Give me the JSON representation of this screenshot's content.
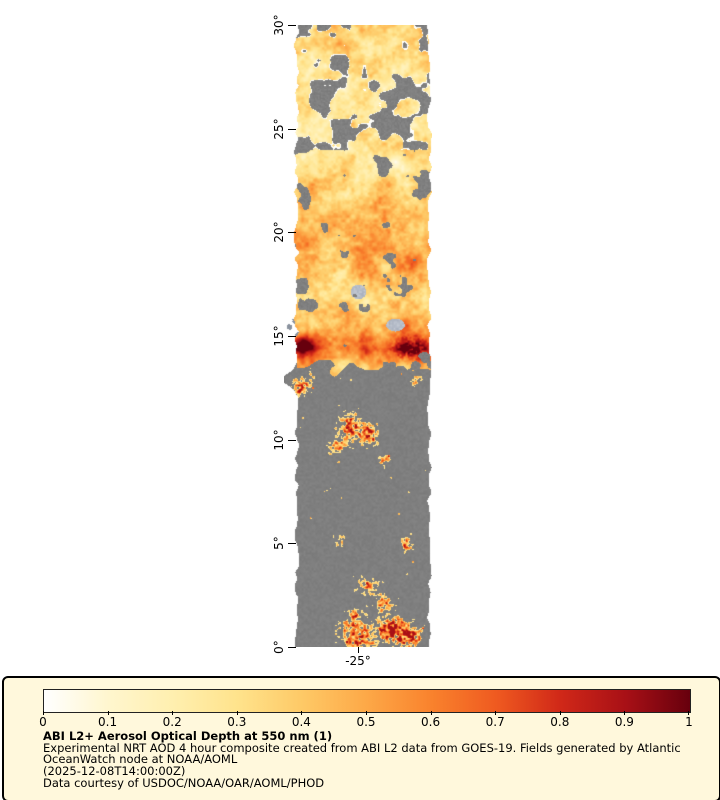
{
  "colors": {
    "legend_bg": "#FFF8DC",
    "panel_border": "#000000",
    "ocean_gray": "#7E7E7E"
  },
  "map": {
    "lat_ticks": [
      "30°",
      "25°",
      "20°",
      "15°",
      "10°",
      "5°",
      "0°"
    ],
    "lon_ticks": [
      "-25°"
    ]
  },
  "colorbar": {
    "tick_labels": [
      "0",
      "0.1",
      "0.2",
      "0.3",
      "0.4",
      "0.5",
      "0.6",
      "0.7",
      "0.8",
      "0.9",
      "1"
    ],
    "gradient_stops": [
      "#FFFFFF",
      "#FFF6CE",
      "#FFEFAF",
      "#FFE38C",
      "#FEC966",
      "#FDA847",
      "#F9822D",
      "#EF5A20",
      "#D02818",
      "#A81016",
      "#67000D"
    ]
  },
  "caption": {
    "title": "ABI L2+ Aerosol Optical Depth at 550 nm (1)",
    "lines": [
      "Experimental NRT AOD 4 hour composite created from ABI L2 data from GOES-19. Fields generated by Atlantic",
      "OceanWatch node at NOAA/AOML",
      "(2025-12-08T14:00:00Z)",
      "Data courtesy of USDOC/NOAA/OAR/AOML/PHOD"
    ]
  }
}
